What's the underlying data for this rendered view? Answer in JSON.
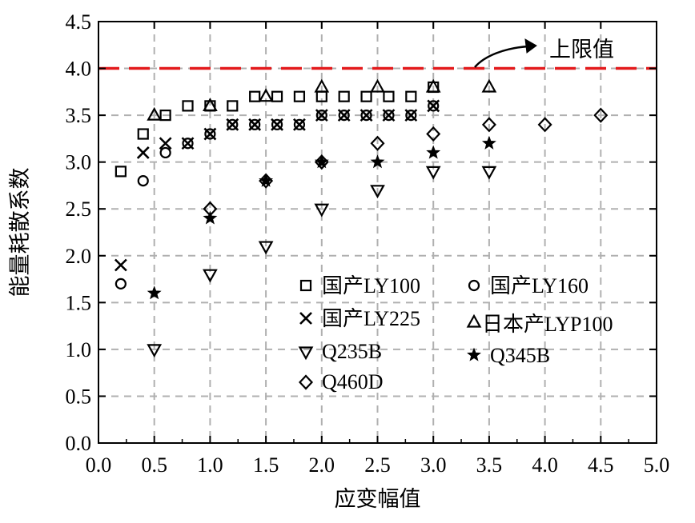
{
  "chart_data": {
    "type": "scatter",
    "xlabel": "应变幅值",
    "ylabel": "能量耗散系数",
    "xlim": [
      0,
      5
    ],
    "ylim": [
      0,
      4.5
    ],
    "x_ticks": [
      "0.0",
      "0.5",
      "1.0",
      "1.5",
      "2.0",
      "2.5",
      "3.0",
      "3.5",
      "4.0",
      "4.5",
      "5.0"
    ],
    "y_ticks": [
      "0.0",
      "0.5",
      "1.0",
      "1.5",
      "2.0",
      "2.5",
      "3.0",
      "3.5",
      "4.0",
      "4.5"
    ],
    "grid": true,
    "legend_position": "center-right",
    "reference_line": {
      "y": 4.0,
      "label": "上限值",
      "color": "#e31a1c"
    },
    "series": [
      {
        "name": "国产LY100",
        "marker": "square",
        "points": [
          [
            0.2,
            2.9
          ],
          [
            0.4,
            3.3
          ],
          [
            0.6,
            3.5
          ],
          [
            0.8,
            3.6
          ],
          [
            1.0,
            3.6
          ],
          [
            1.2,
            3.6
          ],
          [
            1.4,
            3.7
          ],
          [
            1.6,
            3.7
          ],
          [
            1.8,
            3.7
          ],
          [
            2.0,
            3.7
          ],
          [
            2.2,
            3.7
          ],
          [
            2.4,
            3.7
          ],
          [
            2.6,
            3.7
          ],
          [
            2.8,
            3.7
          ],
          [
            3.0,
            3.8
          ]
        ]
      },
      {
        "name": "国产LY160",
        "marker": "circle",
        "points": [
          [
            0.2,
            1.7
          ],
          [
            0.4,
            2.8
          ],
          [
            0.6,
            3.1
          ],
          [
            0.8,
            3.2
          ],
          [
            1.0,
            3.3
          ],
          [
            1.2,
            3.4
          ],
          [
            1.4,
            3.4
          ],
          [
            1.6,
            3.4
          ],
          [
            1.8,
            3.4
          ],
          [
            2.0,
            3.5
          ],
          [
            2.2,
            3.5
          ],
          [
            2.4,
            3.5
          ],
          [
            2.6,
            3.5
          ],
          [
            2.8,
            3.5
          ],
          [
            3.0,
            3.6
          ]
        ]
      },
      {
        "name": "国产LY225",
        "marker": "x",
        "points": [
          [
            0.2,
            1.9
          ],
          [
            0.4,
            3.1
          ],
          [
            0.6,
            3.2
          ],
          [
            0.8,
            3.2
          ],
          [
            1.0,
            3.3
          ],
          [
            1.2,
            3.4
          ],
          [
            1.4,
            3.4
          ],
          [
            1.6,
            3.4
          ],
          [
            1.8,
            3.4
          ],
          [
            2.0,
            3.5
          ],
          [
            2.2,
            3.5
          ],
          [
            2.4,
            3.5
          ],
          [
            2.6,
            3.5
          ],
          [
            2.8,
            3.5
          ],
          [
            3.0,
            3.6
          ]
        ]
      },
      {
        "name": "日本产LYP100",
        "marker": "triangle-up",
        "points": [
          [
            0.5,
            3.5
          ],
          [
            1.0,
            3.6
          ],
          [
            1.5,
            3.7
          ],
          [
            2.0,
            3.8
          ],
          [
            2.5,
            3.8
          ],
          [
            3.0,
            3.8
          ],
          [
            3.5,
            3.8
          ]
        ]
      },
      {
        "name": "Q235B",
        "marker": "triangle-down",
        "points": [
          [
            0.5,
            1.0
          ],
          [
            1.0,
            1.8
          ],
          [
            1.5,
            2.1
          ],
          [
            2.0,
            2.5
          ],
          [
            2.5,
            2.7
          ],
          [
            3.0,
            2.9
          ],
          [
            3.5,
            2.9
          ]
        ]
      },
      {
        "name": "Q345B",
        "marker": "star",
        "points": [
          [
            0.5,
            1.6
          ],
          [
            1.0,
            2.4
          ],
          [
            1.5,
            2.8
          ],
          [
            2.0,
            3.0
          ],
          [
            2.5,
            3.0
          ],
          [
            3.0,
            3.1
          ],
          [
            3.5,
            3.2
          ]
        ]
      },
      {
        "name": "Q460D",
        "marker": "diamond",
        "points": [
          [
            1.0,
            2.5
          ],
          [
            1.5,
            2.8
          ],
          [
            2.0,
            3.0
          ],
          [
            2.5,
            3.2
          ],
          [
            3.0,
            3.3
          ],
          [
            3.5,
            3.4
          ],
          [
            4.0,
            3.4
          ],
          [
            4.5,
            3.5
          ]
        ]
      }
    ]
  }
}
